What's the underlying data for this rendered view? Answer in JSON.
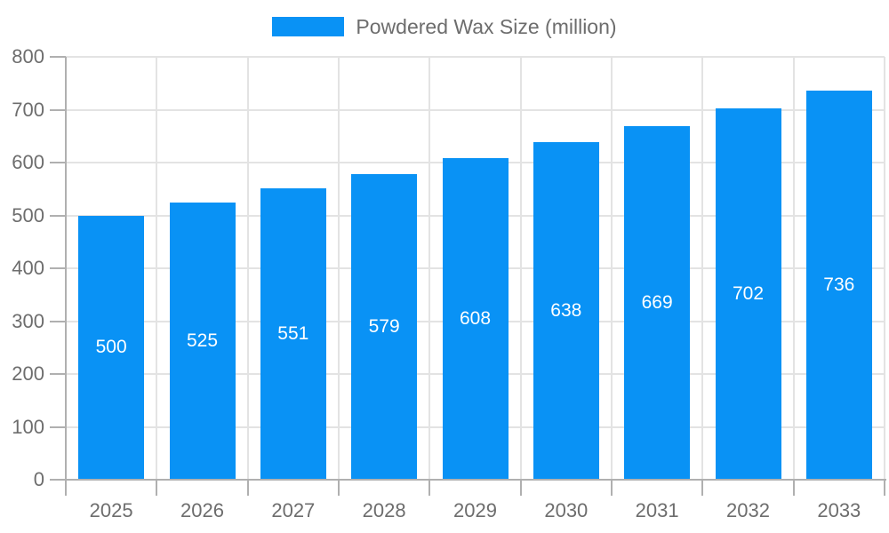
{
  "chart_data": {
    "type": "bar",
    "title": "",
    "legend_label": "Powdered Wax Size (million)",
    "legend_position": "top",
    "categories": [
      "2025",
      "2026",
      "2027",
      "2028",
      "2029",
      "2030",
      "2031",
      "2032",
      "2033"
    ],
    "values": [
      500,
      525,
      551,
      579,
      608,
      638,
      669,
      702,
      736
    ],
    "xlabel": "",
    "ylabel": "",
    "ylim": [
      0,
      800
    ],
    "yticks": [
      0,
      100,
      200,
      300,
      400,
      500,
      600,
      700,
      800
    ],
    "grid": true,
    "value_labels_shown": true,
    "colors": {
      "bar": "#0992F5",
      "bar_value_text": "#FFFFFF",
      "axis_line": "#B0B0B0",
      "gridline": "#E3E3E3",
      "tick_text": "#6D6D6D",
      "background": "#FFFFFF"
    }
  }
}
